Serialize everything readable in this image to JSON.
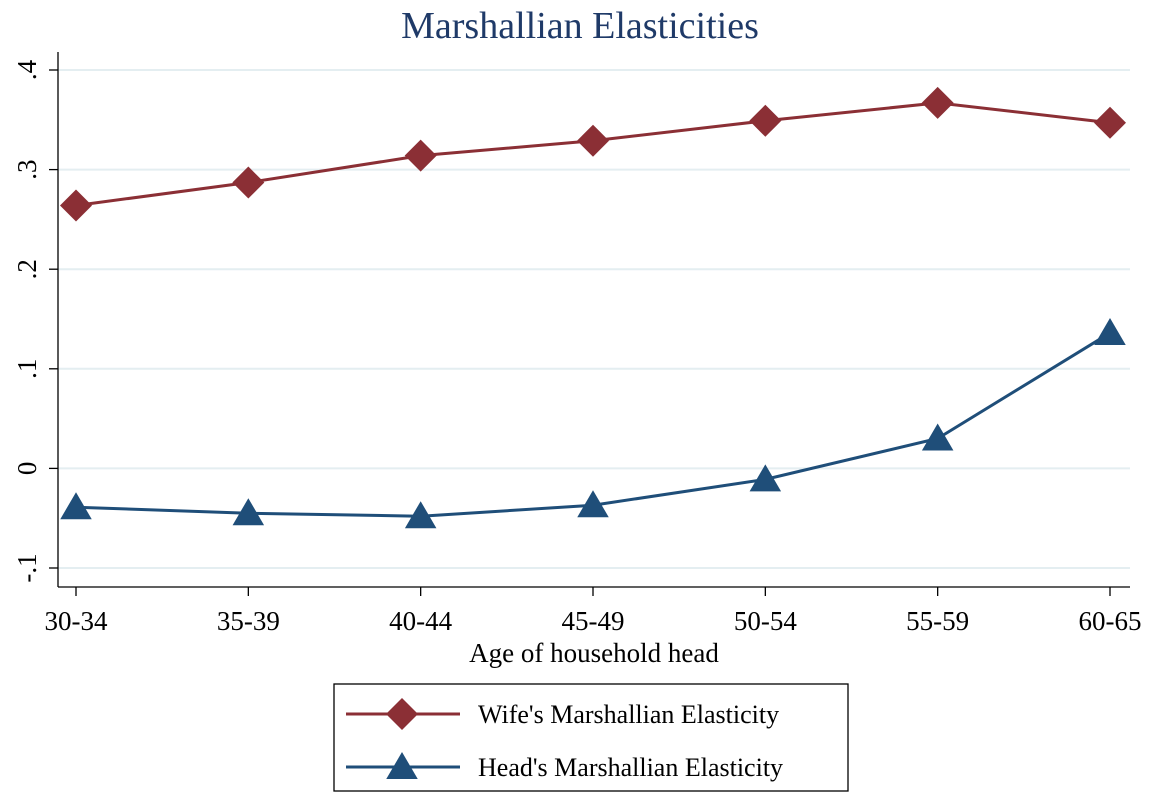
{
  "chart_data": {
    "type": "line",
    "title": "Marshallian Elasticities",
    "xlabel": "Age of household head",
    "ylabel": "",
    "categories": [
      "30-34",
      "35-39",
      "40-44",
      "45-49",
      "50-54",
      "55-59",
      "60-65"
    ],
    "ylim": [
      -0.1,
      0.4
    ],
    "yticks": [
      -0.1,
      0,
      0.1,
      0.2,
      0.3,
      0.4
    ],
    "ytick_labels": [
      "-.1",
      "0",
      ".1",
      ".2",
      ".3",
      ".4"
    ],
    "grid": true,
    "legend_position": "bottom-center",
    "series": [
      {
        "name": "Wife's Marshallian Elasticity",
        "values": [
          0.264,
          0.287,
          0.314,
          0.329,
          0.349,
          0.367,
          0.347
        ],
        "color": "#8b2f35",
        "marker": "diamond"
      },
      {
        "name": "Head's Marshallian Elasticity",
        "values": [
          -0.039,
          -0.045,
          -0.048,
          -0.037,
          -0.011,
          0.03,
          0.136
        ],
        "color": "#1f4e79",
        "marker": "triangle"
      }
    ]
  }
}
